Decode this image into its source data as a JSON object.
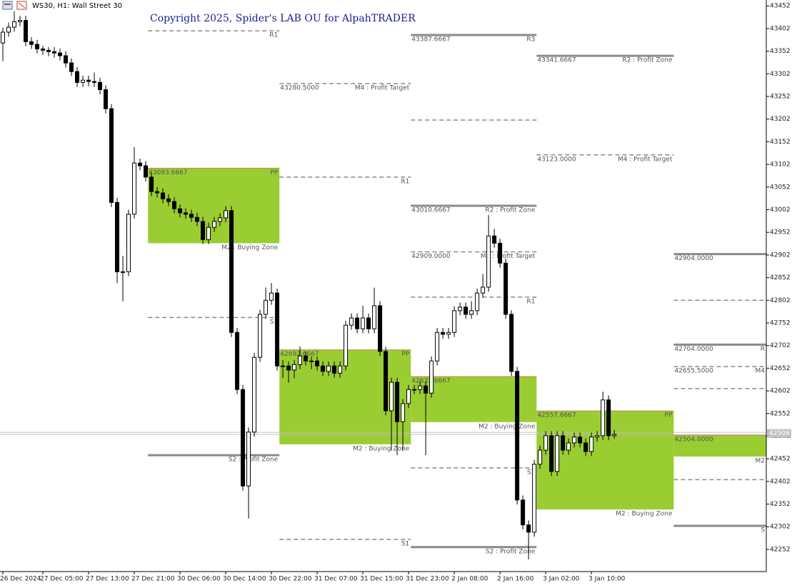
{
  "chart_data": {
    "type": "candlestick",
    "title": "WS30, H1: Wall Street 30",
    "annotation": "Copyright 2025, Spider's LAB OU for AlpahTRADER",
    "categories": [
      "26 Dec 2024",
      null,
      null,
      null,
      null,
      null,
      null,
      "27 Dec 05:00",
      null,
      null,
      null,
      null,
      null,
      null,
      null,
      "27 Dec 13:00",
      null,
      null,
      null,
      null,
      null,
      null,
      null,
      "27 Dec 21:00",
      null,
      null,
      null,
      null,
      null,
      null,
      null,
      "30 Dec 06:00",
      null,
      null,
      null,
      null,
      null,
      null,
      null,
      "30 Dec 14:00",
      null,
      null,
      null,
      null,
      null,
      null,
      null,
      "30 Dec 22:00",
      null,
      null,
      null,
      null,
      null,
      null,
      null,
      "31 Dec 07:00",
      null,
      null,
      null,
      null,
      null,
      null,
      null,
      "31 Dec 15:00",
      null,
      null,
      null,
      null,
      null,
      null,
      null,
      "31 Dec 23:00",
      null,
      null,
      null,
      null,
      null,
      null,
      null,
      "2 Jan 08:00",
      null,
      null,
      null,
      null,
      null,
      null,
      null,
      "2 Jan 16:00",
      null,
      null,
      null,
      null,
      null,
      null,
      null,
      "3 Jan 02:00",
      null,
      null,
      null,
      null,
      null,
      null,
      null,
      "3 Jan 10:00",
      null,
      null,
      null,
      null
    ],
    "open": [
      43370,
      43394,
      43405,
      43417,
      43420,
      43373,
      43367,
      43357,
      43354,
      43351,
      43348,
      43342,
      43326,
      43307,
      43283,
      43288,
      43285,
      43283,
      43267,
      43225,
      43018,
      42865,
      42865,
      42992,
      43105,
      43099,
      43074,
      43042,
      43039,
      43026,
      43020,
      43004,
      42995,
      42992,
      42985,
      42976,
      42936,
      42963,
      42976,
      42984,
      43000,
      42731,
      42605,
      42392,
      42511,
      42676,
      42771,
      42802,
      42818,
      42657,
      42657,
      42648,
      42660,
      42679,
      42668,
      42668,
      42657,
      42645,
      42657,
      42641,
      42657,
      42747,
      42763,
      42739,
      42763,
      42739,
      42790,
      42689,
      42558,
      42621,
      42534,
      42574,
      42605,
      42605,
      42613,
      42597,
      42668,
      42731,
      42727,
      42731,
      42779,
      42787,
      42771,
      42779,
      42818,
      42831,
      42944,
      42928,
      42884,
      42771,
      42645,
      42361,
      42306,
      42290,
      42440,
      42471,
      42503,
      42424,
      42503,
      42471,
      42487,
      42500,
      42487,
      42468,
      42500,
      42503,
      42582,
      42503
    ],
    "high": [
      43404,
      43415,
      43440,
      43430,
      43430,
      43383,
      43377,
      43364,
      43361,
      43361,
      43358,
      43352,
      43336,
      43317,
      43298,
      43298,
      43305,
      43293,
      43277,
      43235,
      43028,
      42900,
      43002,
      43140,
      43115,
      43109,
      43084,
      43052,
      43049,
      43036,
      43030,
      43014,
      43005,
      43002,
      42995,
      42986,
      42973,
      42986,
      42994,
      43010,
      43010,
      42741,
      42615,
      42521,
      42686,
      42781,
      42830,
      42840,
      42828,
      42670,
      42667,
      42670,
      42700,
      42689,
      42678,
      42678,
      42667,
      42667,
      42667,
      42667,
      42757,
      42773,
      42773,
      42790,
      42773,
      42830,
      42800,
      42699,
      42631,
      42631,
      42584,
      42615,
      42615,
      42623,
      42623,
      42678,
      42741,
      42741,
      42741,
      42789,
      42797,
      42797,
      42800,
      42828,
      42860,
      42990,
      42960,
      42938,
      42894,
      42780,
      42655,
      42371,
      42316,
      42450,
      42481,
      42513,
      42513,
      42513,
      42513,
      42497,
      42510,
      42510,
      42497,
      42510,
      42513,
      42600,
      42592,
      42516
    ],
    "low": [
      43330,
      43384,
      43395,
      43407,
      43363,
      43357,
      43347,
      43344,
      43341,
      43338,
      43332,
      43316,
      43297,
      43273,
      43273,
      43275,
      43273,
      43257,
      43215,
      43008,
      42840,
      42800,
      42855,
      42982,
      43089,
      43064,
      43032,
      43029,
      43016,
      43010,
      42994,
      42985,
      42982,
      42975,
      42966,
      42926,
      42926,
      42953,
      42966,
      42974,
      42721,
      42595,
      42382,
      42320,
      42501,
      42666,
      42761,
      42792,
      42647,
      42630,
      42620,
      42630,
      42650,
      42658,
      42650,
      42647,
      42635,
      42635,
      42631,
      42631,
      42647,
      42737,
      42729,
      42729,
      42729,
      42729,
      42679,
      42548,
      42470,
      42460,
      42470,
      42564,
      42595,
      42595,
      42460,
      42587,
      42658,
      42717,
      42717,
      42721,
      42769,
      42761,
      42761,
      42769,
      42808,
      42821,
      42918,
      42874,
      42761,
      42635,
      42351,
      42296,
      42230,
      42280,
      42430,
      42461,
      42414,
      42414,
      42461,
      42461,
      42477,
      42477,
      42458,
      42458,
      42490,
      42493,
      42493,
      42496
    ],
    "close": [
      43394,
      43405,
      43417,
      43420,
      43373,
      43367,
      43357,
      43354,
      43351,
      43348,
      43342,
      43326,
      43307,
      43283,
      43288,
      43285,
      43283,
      43267,
      43225,
      43018,
      42865,
      42865,
      42992,
      43105,
      43099,
      43074,
      43042,
      43039,
      43026,
      43020,
      43004,
      42995,
      42992,
      42985,
      42976,
      42936,
      42963,
      42976,
      42984,
      43000,
      42731,
      42605,
      42392,
      42511,
      42676,
      42771,
      42802,
      42818,
      42657,
      42657,
      42648,
      42660,
      42679,
      42668,
      42668,
      42657,
      42645,
      42657,
      42641,
      42657,
      42747,
      42763,
      42739,
      42763,
      42739,
      42790,
      42689,
      42558,
      42621,
      42534,
      42574,
      42605,
      42605,
      42613,
      42597,
      42668,
      42731,
      42727,
      42731,
      42779,
      42787,
      42771,
      42779,
      42818,
      42831,
      42944,
      42928,
      42884,
      42771,
      42645,
      42361,
      42306,
      42290,
      42440,
      42471,
      42503,
      42424,
      42503,
      42471,
      42487,
      42500,
      42487,
      42468,
      42500,
      42503,
      42582,
      42503,
      42506
    ],
    "bull_color": "#ffffff",
    "bear_color": "#000000",
    "zone_color": "#9acd32",
    "level_color": "#8a8a8a",
    "xlim": [
      -0.5,
      133.6
    ],
    "ylim": [
      42203,
      43465
    ],
    "yticks": [
      43452,
      43402,
      43352,
      43302,
      43252,
      43202,
      43152,
      43102,
      43052,
      43002,
      42952,
      42902,
      42852,
      42802,
      42752,
      42702,
      42652,
      42602,
      42552,
      42502,
      42452,
      42402,
      42352,
      42302,
      42252
    ],
    "last_price": 42508,
    "sessions": [
      {
        "from": 25.4,
        "to": 48.4,
        "levels": [
          {
            "style": "dashed",
            "value": 43397,
            "tag": "R1"
          },
          {
            "style": "zone",
            "values": [
              43093.6667,
              42928
            ],
            "value_label": "43093.6667",
            "tag": "PP",
            "bottom_tag": "M2 : Buying Zone"
          },
          {
            "style": "dashed",
            "value": 42764,
            "tag": "S1"
          },
          {
            "style": "solid",
            "value": 42460,
            "tag": "S2 : Profit Zone"
          }
        ]
      },
      {
        "from": 48.4,
        "to": 71.4,
        "levels": [
          {
            "style": "dashed",
            "value": 43280.5,
            "value_label": "43280.5000",
            "tag": "M4 : Profit Target"
          },
          {
            "style": "dashed",
            "value": 43074,
            "tag": "R1"
          },
          {
            "style": "zone",
            "values": [
              42692.6667,
              42484
            ],
            "value_label": "42692.6667",
            "tag": "PP",
            "bottom_tag": "M2 : Buying Zone"
          },
          {
            "style": "dashed",
            "value": 42274,
            "tag": "S1"
          }
        ]
      },
      {
        "from": 71.4,
        "to": 93.4,
        "levels": [
          {
            "style": "solid",
            "value": 43387.6667,
            "value_label": "43387.6667",
            "tag": "R3"
          },
          {
            "style": "dashed",
            "value": 43200
          },
          {
            "style": "solid",
            "value": 43010.6667,
            "value_label": "43010.6667",
            "tag": "R2 : Profit Zone"
          },
          {
            "style": "dashed",
            "value": 42909,
            "value_label": "42909.0000",
            "tag": "M4 : Profit Target"
          },
          {
            "style": "dashed",
            "value": 42809,
            "tag": "R1"
          },
          {
            "style": "zone",
            "values": [
              42633.6667,
              42533
            ],
            "value_label": "42633.6667",
            "bottom_tag": "M2 : Buying Zone"
          },
          {
            "style": "dashed",
            "value": 42432,
            "tag": "S1"
          },
          {
            "style": "solid",
            "value": 42257,
            "tag": "S2 : Profit Zone"
          }
        ]
      },
      {
        "from": 93.4,
        "to": 117.4,
        "levels": [
          {
            "style": "solid",
            "value": 43341.6667,
            "value_label": "43341.6667",
            "tag": "R2 : Profit Zone"
          },
          {
            "style": "dashed",
            "value": 43123,
            "value_label": "43123.0000",
            "tag": "M4 : Profit Target"
          },
          {
            "style": "zone",
            "values": [
              42557.6667,
              42340
            ],
            "value_label": "42557.6667",
            "tag": "PP",
            "bottom_tag": "M2 : Buying Zone"
          }
        ]
      },
      {
        "from": 117.4,
        "to": 133.6,
        "levels": [
          {
            "style": "solid",
            "value": 42904,
            "value_label": "42904.0000"
          },
          {
            "style": "dashed",
            "value": 42802
          },
          {
            "style": "solid",
            "value": 42704,
            "value_label": "42704.0000",
            "tag": "R"
          },
          {
            "style": "dashed",
            "value": 42655.5,
            "value_label": "42655.5000",
            "tag": "M4"
          },
          {
            "style": "dashed",
            "value": 42607
          },
          {
            "style": "zone",
            "values": [
              42504,
              42457
            ],
            "value_label": "42504.0000",
            "bottom_tag": "M2"
          },
          {
            "style": "dashed",
            "value": 42406
          },
          {
            "style": "solid",
            "value": 42304,
            "tag": "S"
          }
        ]
      }
    ]
  }
}
